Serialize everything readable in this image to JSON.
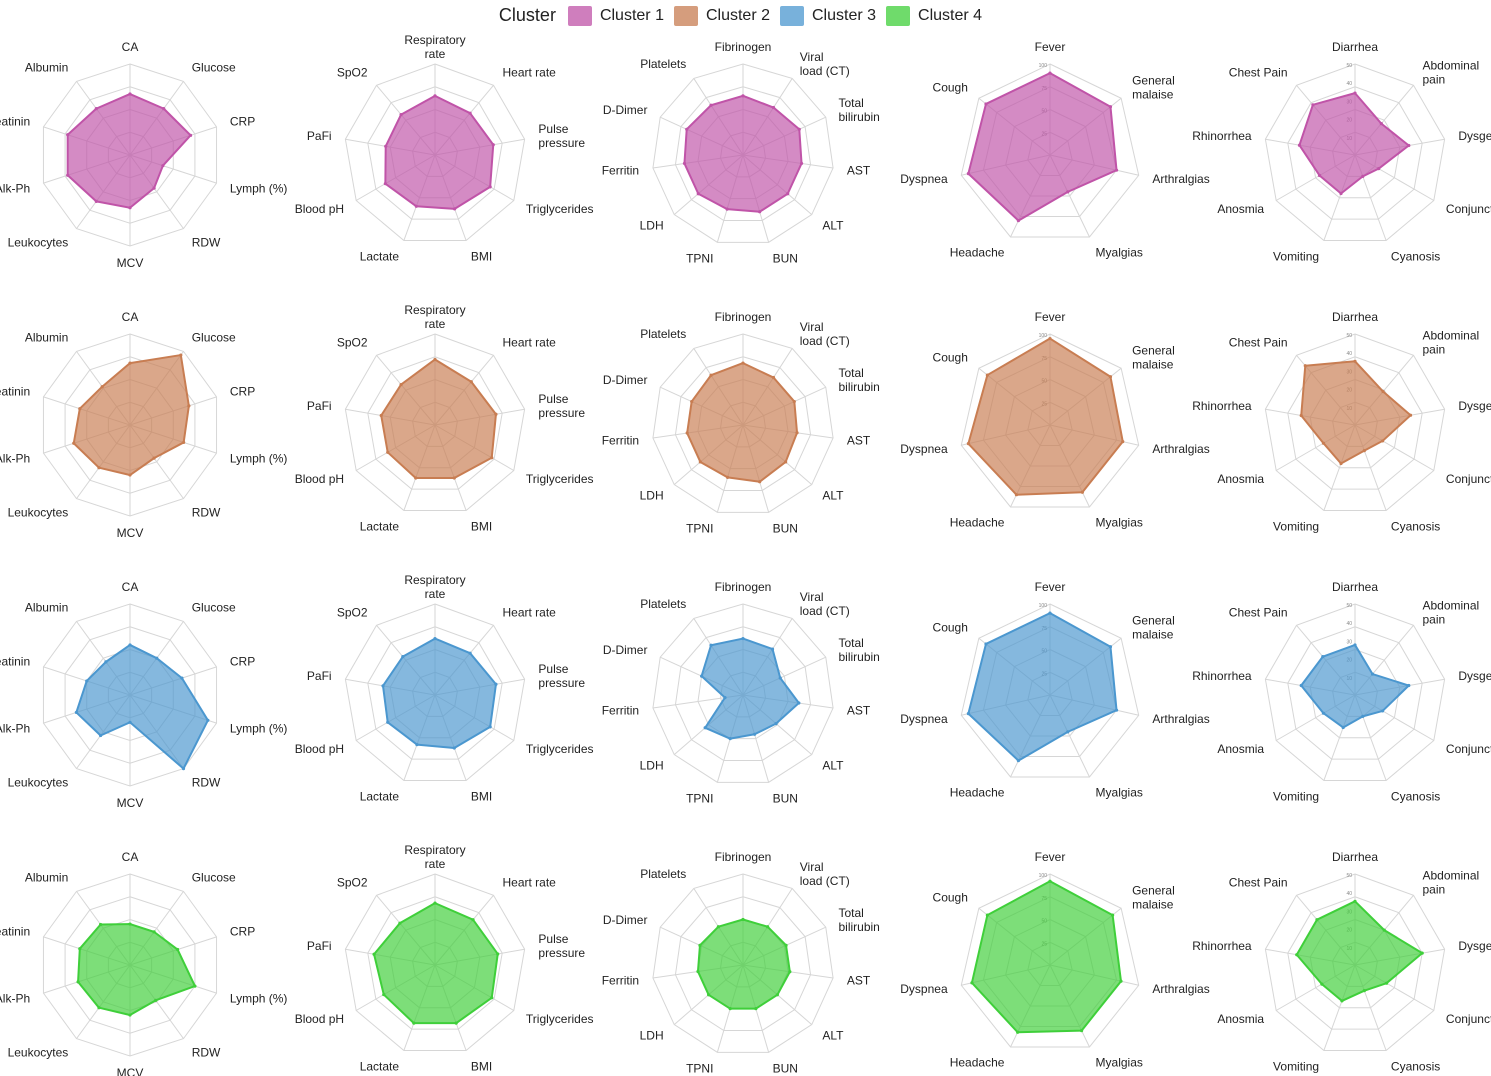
{
  "legend": {
    "title": "Cluster",
    "items": [
      {
        "label": "Cluster 1",
        "color": "#c054a8"
      },
      {
        "label": "Cluster 2",
        "color": "#c87d52"
      },
      {
        "label": "Cluster 3",
        "color": "#4b97cf"
      },
      {
        "label": "Cluster 4",
        "color": "#3fcf3a"
      }
    ]
  },
  "chart_data": [
    {
      "type": "radar",
      "cluster": "Cluster 1",
      "color": "#c054a8",
      "axes": [
        "CA",
        "Glucose",
        "CRP",
        "Lymph (%)",
        "RDW",
        "MCV",
        "Leukocytes",
        "Alk-Ph",
        "Creatinin",
        "Albumin"
      ],
      "values": [
        0.67,
        0.63,
        0.7,
        0.38,
        0.45,
        0.58,
        0.63,
        0.72,
        0.72,
        0.63
      ],
      "rlim": [
        0,
        1
      ]
    },
    {
      "type": "radar",
      "cluster": "Cluster 1",
      "color": "#c054a8",
      "axes": [
        "Respiratory rate",
        "Heart rate",
        "Pulse pressure",
        "Triglycerides",
        "BMI",
        "Lactate",
        "Blood pH",
        "PaFi",
        "SpO2"
      ],
      "values": [
        0.65,
        0.6,
        0.65,
        0.7,
        0.63,
        0.6,
        0.63,
        0.55,
        0.58
      ],
      "rlim": [
        0,
        1
      ]
    },
    {
      "type": "radar",
      "cluster": "Cluster 1",
      "color": "#c054a8",
      "axes": [
        "Fibrinogen",
        "Viral load (CT)",
        "Total bilirubin",
        "AST",
        "ALT",
        "BUN",
        "TPNI",
        "LDH",
        "Ferritin",
        "D-Dimer",
        "Platelets"
      ],
      "values": [
        0.65,
        0.62,
        0.68,
        0.65,
        0.65,
        0.65,
        0.62,
        0.65,
        0.65,
        0.68,
        0.65
      ],
      "rlim": [
        0,
        1
      ]
    },
    {
      "type": "radar",
      "cluster": "Cluster 1",
      "color": "#c054a8",
      "axes": [
        "Fever",
        "General malaise",
        "Arthralgias",
        "Myalgias",
        "Headache",
        "Dyspnea",
        "Cough"
      ],
      "values": [
        0.9,
        0.85,
        0.75,
        0.45,
        0.8,
        0.92,
        0.9
      ],
      "rlim": [
        0,
        100
      ],
      "ticks": [
        "25",
        "50",
        "75",
        "100"
      ]
    },
    {
      "type": "radar",
      "cluster": "Cluster 1",
      "color": "#c054a8",
      "axes": [
        "Diarrhea",
        "Abdominal pain",
        "Dysgeusia",
        "Conjunctivitis",
        "Cyanosis",
        "Vomiting",
        "Anosmia",
        "Rhinorrhea",
        "Chest Pain"
      ],
      "values": [
        0.68,
        0.45,
        0.6,
        0.3,
        0.25,
        0.45,
        0.45,
        0.62,
        0.72
      ],
      "rlim": [
        0,
        50
      ],
      "ticks": [
        "10",
        "20",
        "30",
        "40",
        "50"
      ]
    },
    {
      "type": "radar",
      "cluster": "Cluster 2",
      "color": "#c87d52",
      "axes": [
        "CA",
        "Glucose",
        "CRP",
        "Lymph (%)",
        "RDW",
        "MCV",
        "Leukocytes",
        "Alk-Ph",
        "Creatinin",
        "Albumin"
      ],
      "values": [
        0.68,
        0.95,
        0.68,
        0.62,
        0.45,
        0.55,
        0.58,
        0.65,
        0.58,
        0.52
      ],
      "rlim": [
        0,
        1
      ]
    },
    {
      "type": "radar",
      "cluster": "Cluster 2",
      "color": "#c87d52",
      "axes": [
        "Respiratory rate",
        "Heart rate",
        "Pulse pressure",
        "Triglycerides",
        "BMI",
        "Lactate",
        "Blood pH",
        "PaFi",
        "SpO2"
      ],
      "values": [
        0.72,
        0.62,
        0.68,
        0.72,
        0.62,
        0.62,
        0.6,
        0.6,
        0.58
      ],
      "rlim": [
        0,
        1
      ]
    },
    {
      "type": "radar",
      "cluster": "Cluster 2",
      "color": "#c87d52",
      "axes": [
        "Fibrinogen",
        "Viral load (CT)",
        "Total bilirubin",
        "AST",
        "ALT",
        "BUN",
        "TPNI",
        "LDH",
        "Ferritin",
        "D-Dimer",
        "Platelets"
      ],
      "values": [
        0.68,
        0.62,
        0.62,
        0.6,
        0.62,
        0.65,
        0.6,
        0.62,
        0.62,
        0.62,
        0.65
      ],
      "rlim": [
        0,
        1
      ]
    },
    {
      "type": "radar",
      "cluster": "Cluster 2",
      "color": "#c87d52",
      "axes": [
        "Fever",
        "General malaise",
        "Arthralgias",
        "Myalgias",
        "Headache",
        "Dyspnea",
        "Cough"
      ],
      "values": [
        0.95,
        0.85,
        0.82,
        0.82,
        0.85,
        0.92,
        0.88
      ],
      "rlim": [
        0,
        100
      ],
      "ticks": [
        "25",
        "50",
        "75",
        "100"
      ]
    },
    {
      "type": "radar",
      "cluster": "Cluster 2",
      "color": "#c87d52",
      "axes": [
        "Diarrhea",
        "Abdominal pain",
        "Dysgeusia",
        "Conjunctivitis",
        "Cyanosis",
        "Vomiting",
        "Anosmia",
        "Rhinorrhea",
        "Chest Pain"
      ],
      "values": [
        0.7,
        0.48,
        0.62,
        0.35,
        0.3,
        0.45,
        0.4,
        0.6,
        0.85
      ],
      "rlim": [
        0,
        50
      ],
      "ticks": [
        "10",
        "20",
        "30",
        "40",
        "50"
      ]
    },
    {
      "type": "radar",
      "cluster": "Cluster 3",
      "color": "#4b97cf",
      "axes": [
        "CA",
        "Glucose",
        "CRP",
        "Lymph (%)",
        "RDW",
        "MCV",
        "Leukocytes",
        "Alk-Ph",
        "Creatinin",
        "Albumin"
      ],
      "values": [
        0.55,
        0.5,
        0.6,
        0.9,
        1.0,
        0.3,
        0.55,
        0.62,
        0.5,
        0.45
      ],
      "rlim": [
        0,
        1
      ]
    },
    {
      "type": "radar",
      "cluster": "Cluster 3",
      "color": "#4b97cf",
      "axes": [
        "Respiratory rate",
        "Heart rate",
        "Pulse pressure",
        "Triglycerides",
        "BMI",
        "Lactate",
        "Blood pH",
        "PaFi",
        "SpO2"
      ],
      "values": [
        0.62,
        0.6,
        0.68,
        0.7,
        0.62,
        0.58,
        0.6,
        0.58,
        0.55
      ],
      "rlim": [
        0,
        1
      ]
    },
    {
      "type": "radar",
      "cluster": "Cluster 3",
      "color": "#4b97cf",
      "axes": [
        "Fibrinogen",
        "Viral load (CT)",
        "Total bilirubin",
        "AST",
        "ALT",
        "BUN",
        "TPNI",
        "LDH",
        "Ferritin",
        "D-Dimer",
        "Platelets"
      ],
      "values": [
        0.62,
        0.6,
        0.45,
        0.62,
        0.48,
        0.45,
        0.5,
        0.55,
        0.2,
        0.5,
        0.65
      ],
      "rlim": [
        0,
        1
      ]
    },
    {
      "type": "radar",
      "cluster": "Cluster 3",
      "color": "#4b97cf",
      "axes": [
        "Fever",
        "General malaise",
        "Arthralgias",
        "Myalgias",
        "Headache",
        "Dyspnea",
        "Cough"
      ],
      "values": [
        0.9,
        0.85,
        0.75,
        0.45,
        0.8,
        0.92,
        0.9
      ],
      "rlim": [
        0,
        100
      ],
      "ticks": [
        "25",
        "50",
        "75",
        "100"
      ]
    },
    {
      "type": "radar",
      "cluster": "Cluster 3",
      "color": "#4b97cf",
      "axes": [
        "Diarrhea",
        "Abdominal pain",
        "Dysgeusia",
        "Conjunctivitis",
        "Cyanosis",
        "Vomiting",
        "Anosmia",
        "Rhinorrhea",
        "Chest Pain"
      ],
      "values": [
        0.55,
        0.3,
        0.6,
        0.35,
        0.25,
        0.38,
        0.4,
        0.6,
        0.55
      ],
      "rlim": [
        0,
        50
      ],
      "ticks": [
        "10",
        "20",
        "30",
        "40",
        "50"
      ]
    },
    {
      "type": "radar",
      "cluster": "Cluster 4",
      "color": "#3fcf3a",
      "axes": [
        "CA",
        "Glucose",
        "CRP",
        "Lymph (%)",
        "RDW",
        "MCV",
        "Leukocytes",
        "Alk-Ph",
        "Creatinin",
        "Albumin"
      ],
      "values": [
        0.45,
        0.45,
        0.55,
        0.75,
        0.48,
        0.55,
        0.58,
        0.6,
        0.58,
        0.55
      ],
      "rlim": [
        0,
        1
      ]
    },
    {
      "type": "radar",
      "cluster": "Cluster 4",
      "color": "#3fcf3a",
      "axes": [
        "Respiratory rate",
        "Heart rate",
        "Pulse pressure",
        "Triglycerides",
        "BMI",
        "Lactate",
        "Blood pH",
        "PaFi",
        "SpO2"
      ],
      "values": [
        0.68,
        0.65,
        0.7,
        0.72,
        0.68,
        0.68,
        0.65,
        0.68,
        0.6
      ],
      "rlim": [
        0,
        1
      ]
    },
    {
      "type": "radar",
      "cluster": "Cluster 4",
      "color": "#3fcf3a",
      "axes": [
        "Fibrinogen",
        "Viral load (CT)",
        "Total bilirubin",
        "AST",
        "ALT",
        "BUN",
        "TPNI",
        "LDH",
        "Ferritin",
        "D-Dimer",
        "Platelets"
      ],
      "values": [
        0.5,
        0.5,
        0.52,
        0.52,
        0.5,
        0.5,
        0.5,
        0.5,
        0.5,
        0.52,
        0.5
      ],
      "rlim": [
        0,
        1
      ]
    },
    {
      "type": "radar",
      "cluster": "Cluster 4",
      "color": "#3fcf3a",
      "axes": [
        "Fever",
        "General malaise",
        "Arthralgias",
        "Myalgias",
        "Headache",
        "Dyspnea",
        "Cough"
      ],
      "values": [
        0.92,
        0.88,
        0.8,
        0.8,
        0.82,
        0.88,
        0.88
      ],
      "rlim": [
        0,
        100
      ],
      "ticks": [
        "25",
        "50",
        "75",
        "100"
      ]
    },
    {
      "type": "radar",
      "cluster": "Cluster 4",
      "color": "#3fcf3a",
      "axes": [
        "Diarrhea",
        "Abdominal pain",
        "Dysgeusia",
        "Conjunctivitis",
        "Cyanosis",
        "Vomiting",
        "Anosmia",
        "Rhinorrhea",
        "Chest Pain"
      ],
      "values": [
        0.7,
        0.5,
        0.75,
        0.4,
        0.3,
        0.42,
        0.42,
        0.65,
        0.65
      ],
      "rlim": [
        0,
        50
      ],
      "ticks": [
        "10",
        "20",
        "30",
        "40",
        "50"
      ]
    }
  ]
}
